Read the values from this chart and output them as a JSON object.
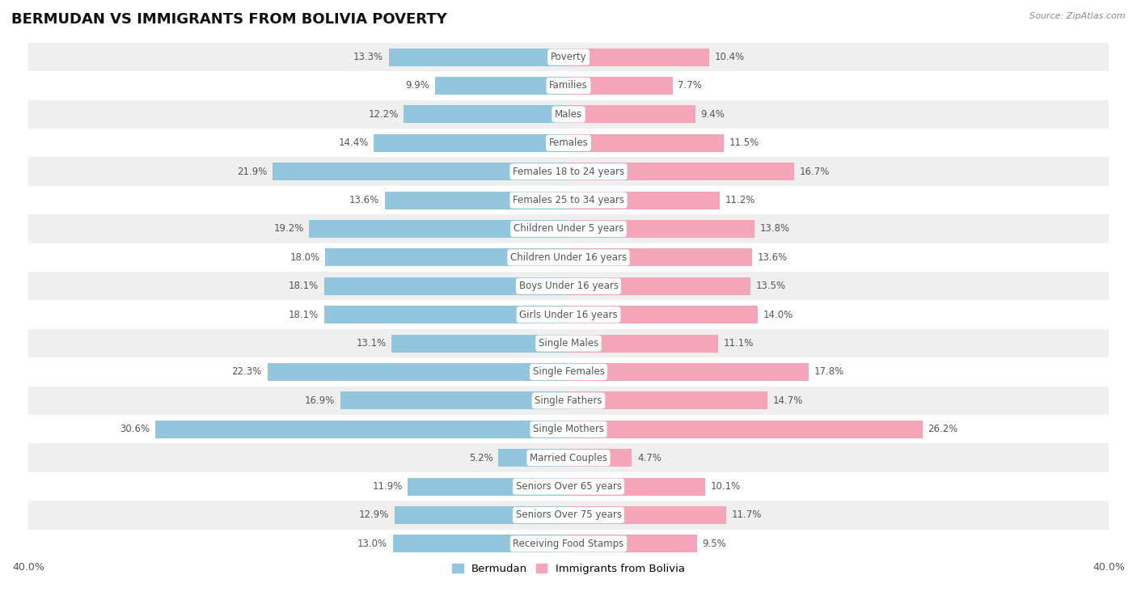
{
  "title": "BERMUDAN VS IMMIGRANTS FROM BOLIVIA POVERTY",
  "source": "Source: ZipAtlas.com",
  "categories": [
    "Poverty",
    "Families",
    "Males",
    "Females",
    "Females 18 to 24 years",
    "Females 25 to 34 years",
    "Children Under 5 years",
    "Children Under 16 years",
    "Boys Under 16 years",
    "Girls Under 16 years",
    "Single Males",
    "Single Females",
    "Single Fathers",
    "Single Mothers",
    "Married Couples",
    "Seniors Over 65 years",
    "Seniors Over 75 years",
    "Receiving Food Stamps"
  ],
  "bermudan": [
    13.3,
    9.9,
    12.2,
    14.4,
    21.9,
    13.6,
    19.2,
    18.0,
    18.1,
    18.1,
    13.1,
    22.3,
    16.9,
    30.6,
    5.2,
    11.9,
    12.9,
    13.0
  ],
  "bolivia": [
    10.4,
    7.7,
    9.4,
    11.5,
    16.7,
    11.2,
    13.8,
    13.6,
    13.5,
    14.0,
    11.1,
    17.8,
    14.7,
    26.2,
    4.7,
    10.1,
    11.7,
    9.5
  ],
  "bermudan_color": "#92c5de",
  "bolivia_color": "#f4a6b8",
  "background_row_light": "#efefef",
  "background_row_white": "#ffffff",
  "text_color": "#555555",
  "axis_limit": 40.0,
  "title_fontsize": 13,
  "cat_fontsize": 8.5,
  "value_fontsize": 8.5,
  "legend_fontsize": 9.5
}
